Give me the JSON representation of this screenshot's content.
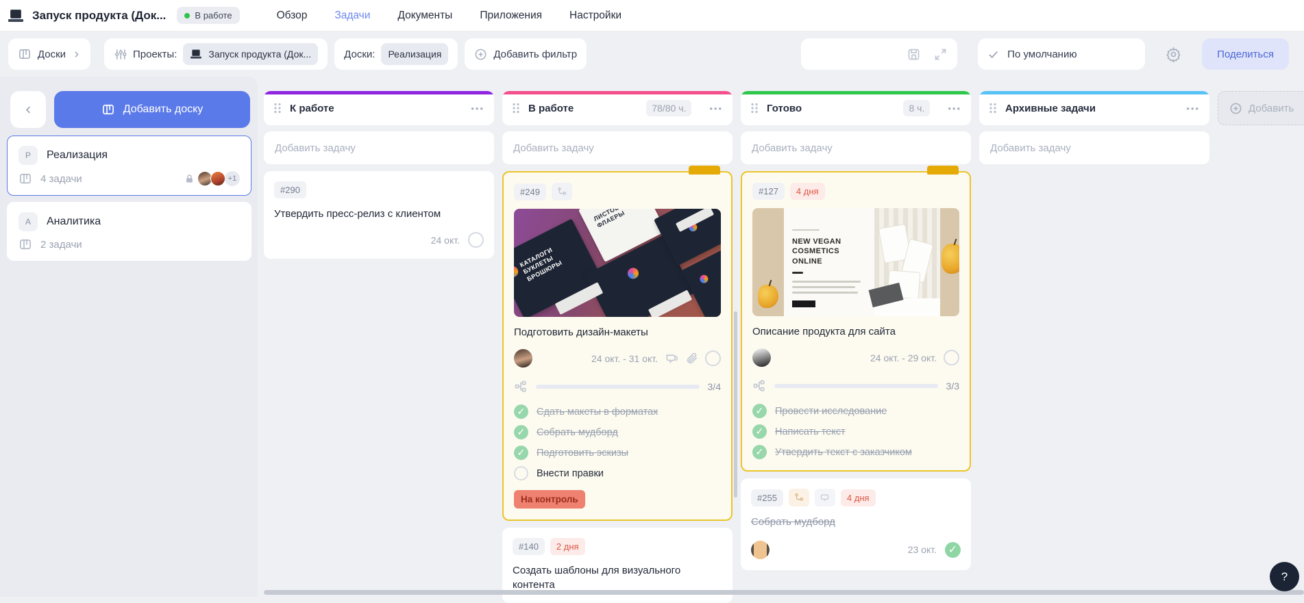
{
  "header": {
    "title": "Запуск продукта (Док...",
    "status": {
      "label": "В работе",
      "dot": "#30c24a"
    },
    "nav": {
      "overview": "Обзор",
      "tasks": "Задачи",
      "documents": "Документы",
      "apps": "Приложения",
      "settings": "Настройки"
    }
  },
  "toolbar": {
    "boards_button": "Доски",
    "projects_label": "Проекты:",
    "project_chip": "Запуск продукта (Док...",
    "boards_filter_label": "Доски:",
    "boards_filter_value": "Реализация",
    "add_filter": "Добавить фильтр",
    "view_mode": "По умолчанию",
    "share": "Поделиться"
  },
  "sidebar": {
    "add_board": "Добавить доску",
    "boards": [
      {
        "initial": "P",
        "name": "Реализация",
        "count": "4 задачи",
        "extra_members": "+1"
      },
      {
        "initial": "A",
        "name": "Аналитика",
        "count": "2 задачи"
      }
    ]
  },
  "board": {
    "add_task_placeholder": "Добавить задачу",
    "add_column": "Добавить",
    "columns": [
      {
        "title": "К работе",
        "accent": "#8f25e0",
        "hours": ""
      },
      {
        "title": "В работе",
        "accent": "#f5508e",
        "hours": "78/80 ч."
      },
      {
        "title": "Готово",
        "accent": "#2fc74b",
        "hours": "8 ч."
      },
      {
        "title": "Архивные задачи",
        "accent": "#56c2f5",
        "hours": ""
      }
    ]
  },
  "cards": {
    "c290": {
      "id": "#290",
      "title": "Утвердить пресс-релиз с клиентом",
      "due": "24 окт."
    },
    "c249": {
      "id": "#249",
      "title": "Подготовить дизайн-макеты",
      "dates": "24 окт. - 31 окт.",
      "progress_label": "3/4",
      "progress_percent": 75,
      "status_badge": "На контроль",
      "cover": {
        "text1": "КАТАЛОГИ БУКЛЕТЫ БРОШЮРЫ",
        "text2": "ЛИСТОВКИ ФЛАЕРЫ"
      },
      "checklist": [
        {
          "text": "Сдать макеты в форматах",
          "done": true
        },
        {
          "text": "Собрать мудборд",
          "done": true
        },
        {
          "text": "Подготовить эскизы",
          "done": true
        },
        {
          "text": "Внести правки",
          "done": false
        }
      ]
    },
    "c140": {
      "id": "#140",
      "days": "2 дня",
      "title": "Создать шаблоны для визуального контента"
    },
    "c127": {
      "id": "#127",
      "days": "4 дня",
      "title": "Описание продукта для сайта",
      "dates": "24 окт. - 29 окт.",
      "progress_label": "3/3",
      "progress_percent": 100,
      "cover": {
        "headline": "NEW VEGAN COSMETICS ONLINE"
      },
      "checklist": [
        {
          "text": "Провести исследование",
          "done": true
        },
        {
          "text": "Написать текст",
          "done": true
        },
        {
          "text": "Утвердить текст с заказчиком",
          "done": true
        }
      ]
    },
    "c255": {
      "id": "#255",
      "days": "4 дня",
      "title": "Собрать мудборд",
      "due": "23 окт."
    }
  },
  "help": {
    "label": "?"
  }
}
